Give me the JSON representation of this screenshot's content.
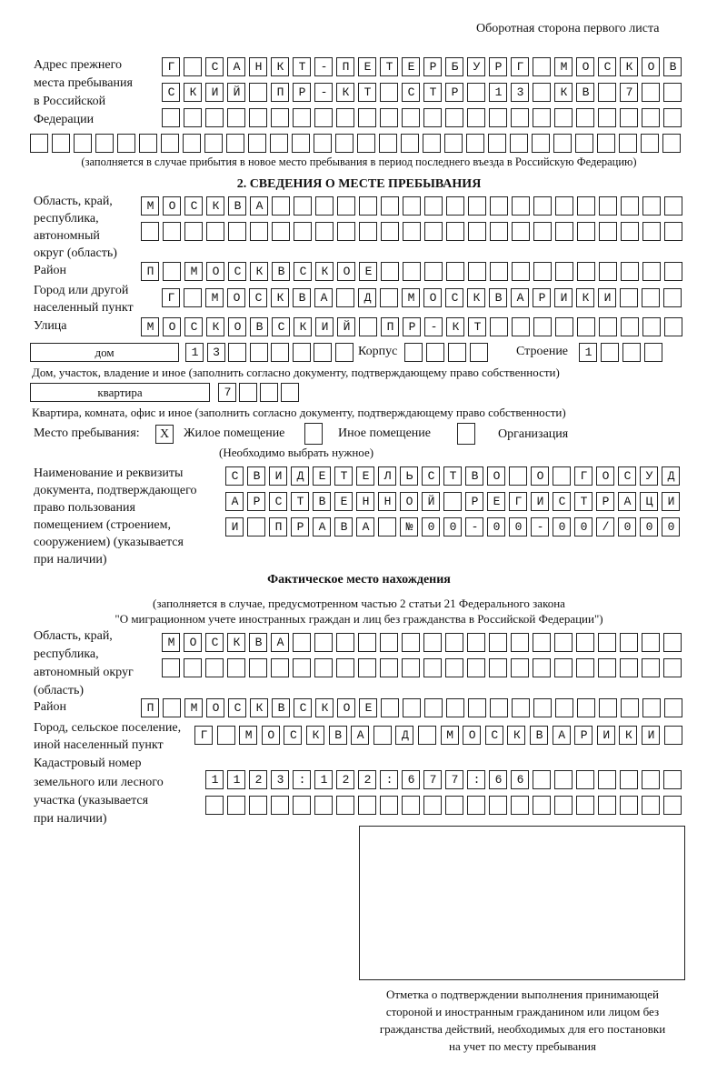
{
  "header": {
    "page_side": "Оборотная сторона первого листа"
  },
  "previous_address": {
    "label": [
      "Адрес прежнего",
      "места пребывания",
      "в Российской",
      "Федерации"
    ],
    "rows": [
      "Г САНКТ-ПЕТЕРБУРГ МОСКОВ",
      "СКИЙ ПР-КТ СТР 13 КВ 7",
      "",
      ""
    ],
    "note": "(заполняется в случае прибытия в новое место пребывания в период последнего въезда в Российскую Федерацию)"
  },
  "section2": {
    "title": "2. СВЕДЕНИЯ О МЕСТЕ ПРЕБЫВАНИЯ",
    "region": {
      "label": [
        "Область, край,",
        "республика,",
        "автономный",
        "округ (область)"
      ],
      "rows": [
        "МОСКВА",
        ""
      ]
    },
    "district": {
      "label": "Район",
      "value": "П МОСКВСКОЕ"
    },
    "city": {
      "label": [
        "Город или другой",
        "населенный пункт"
      ],
      "value": "Г МОСКВА Д МОСКВАРИКИ"
    },
    "street": {
      "label": "Улица",
      "value": "МОСКОВСКИЙ ПР-КТ"
    },
    "house": {
      "type": "дом",
      "number": "13",
      "korpus_label": "Корпус",
      "korpus": "",
      "stroenie_label": "Строение",
      "stroenie": "1",
      "note": "Дом, участок, владение и иное (заполнить согласно документу, подтверждающему право собственности)"
    },
    "apartment": {
      "type": "квартира",
      "number": "7",
      "note": "Квартира, комната, офис и иное (заполнить согласно документу, подтверждающему право собственности)"
    },
    "place_type": {
      "label": "Место пребывания:",
      "options": [
        {
          "label": "Жилое помещение",
          "mark": "X",
          "checked": true
        },
        {
          "label": "Иное помещение",
          "mark": "",
          "checked": false
        },
        {
          "label": "Организация",
          "mark": "",
          "checked": false
        }
      ],
      "note": "(Необходимо выбрать нужное)"
    },
    "document": {
      "label": [
        "Наименование и реквизиты",
        "документа, подтверждающего",
        "право пользования",
        "помещением (строением,",
        "сооружением) (указывается",
        "при наличии)"
      ],
      "rows": [
        "СВИДЕТЕЛЬСТВО О ГОСУД",
        "АРСТВЕННОЙ РЕГИСТРАЦИ",
        "И ПРАВА №00-00-00/000"
      ]
    }
  },
  "actual_location": {
    "title": "Фактическое место нахождения",
    "note": [
      "(заполняется в случае, предусмотренном частью 2 статьи 21 Федерального закона",
      "\"О миграционном учете иностранных граждан и лиц без гражданства в Российской Федерации\")"
    ],
    "region": {
      "label": [
        "Область, край,",
        "республика,",
        "автономный округ",
        "(область)"
      ],
      "rows": [
        "МОСКВА",
        ""
      ]
    },
    "district": {
      "label": "Район",
      "value": "П МОСКВСКОЕ"
    },
    "city": {
      "label": [
        "Город, сельское поселение,",
        "иной населенный пункт"
      ],
      "value": "Г МОСКВА Д МОСКВАРИКИ"
    },
    "cadastral": {
      "label": [
        "Кадастровый номер",
        "земельного или лесного",
        "участка (указывается",
        "при наличии)"
      ],
      "rows": [
        "1123:122:677:66",
        ""
      ]
    }
  },
  "confirmation": {
    "caption": [
      "Отметка о подтверждении выполнения принимающей",
      "стороной и иностранным гражданином или лицом без",
      "гражданства действий, необходимых для его постановки",
      "на учет по месту пребывания"
    ]
  }
}
